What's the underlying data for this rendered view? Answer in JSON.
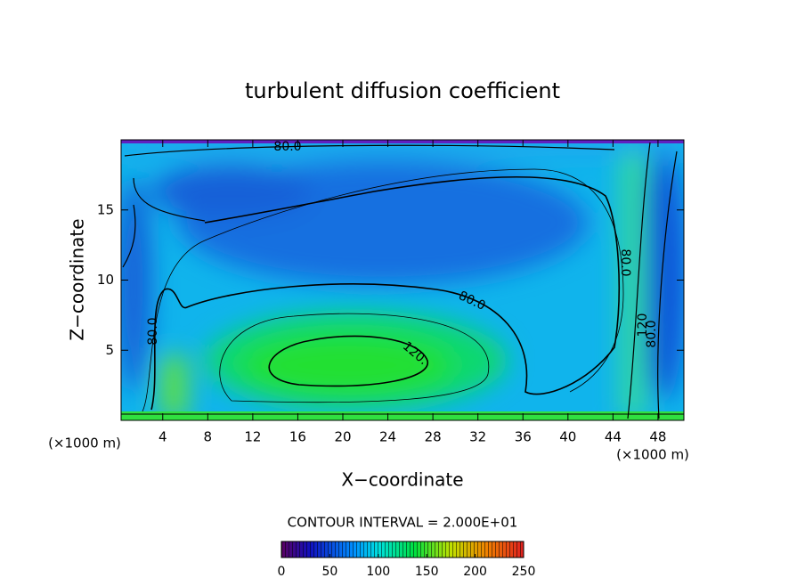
{
  "chart_data": {
    "type": "contour",
    "title": "turbulent diffusion coefficient",
    "xlabel": "X−coordinate",
    "ylabel": "Z−coordinate",
    "x_unit_labels": [
      "(×1000 m)",
      "(×1000 m)"
    ],
    "xlim": [
      0.3,
      50.3
    ],
    "xticks": [
      4,
      8,
      12,
      16,
      20,
      24,
      28,
      32,
      36,
      40,
      44,
      48
    ],
    "ylim": [
      0,
      20
    ],
    "yticks": [
      5,
      10,
      15
    ],
    "contour_interval_label": "CONTOUR INTERVAL = 2.000E+01",
    "contour_labels": [
      "80.0",
      "80.0",
      "80.0",
      "120.",
      "80.0",
      "120",
      "80.0"
    ],
    "clim": [
      0,
      250
    ],
    "cticks": [
      0,
      50,
      100,
      150,
      200,
      250
    ]
  }
}
